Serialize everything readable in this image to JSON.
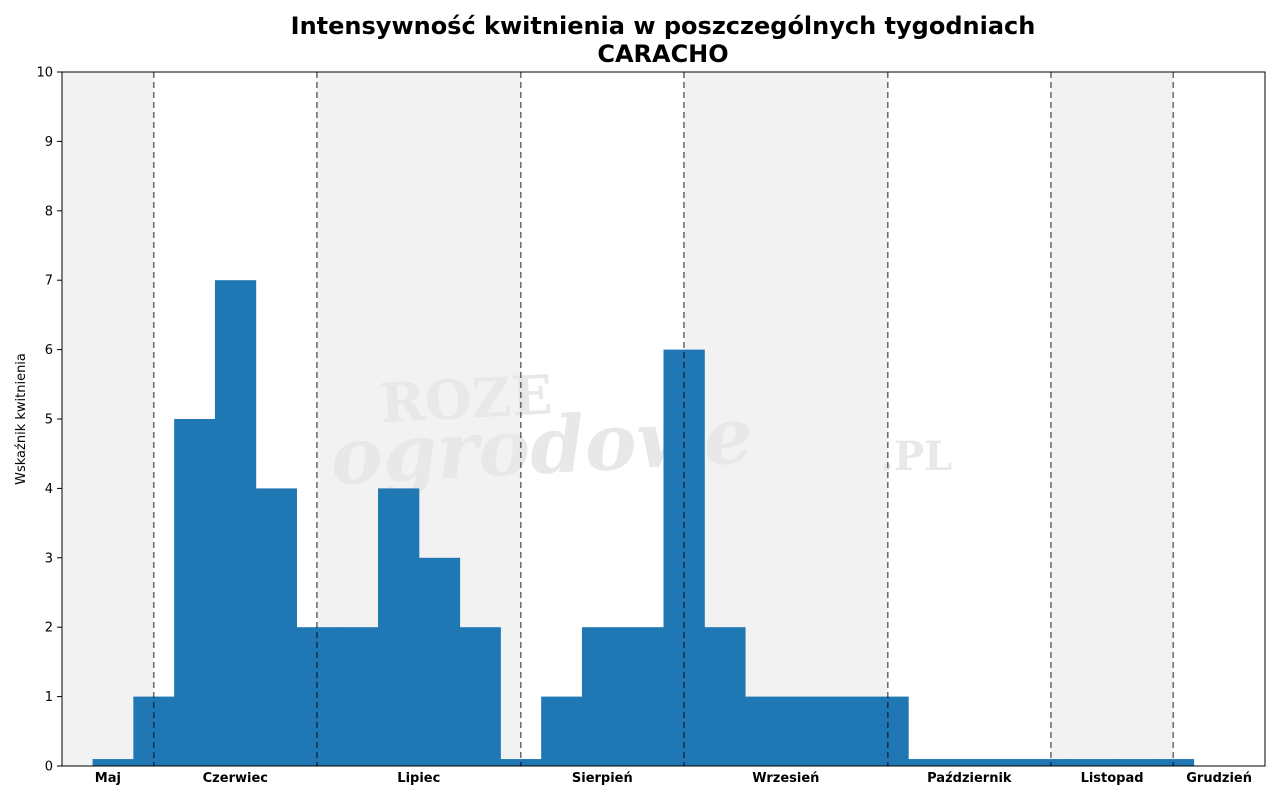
{
  "chart_data": {
    "type": "bar",
    "title": "Intensywność kwitnienia w poszczególnych tygodniach",
    "subtitle": "CARACHO",
    "xlabel": "",
    "ylabel": "Wskaźnik kwitnienia",
    "ylim": [
      0,
      10
    ],
    "yticks": [
      0,
      1,
      2,
      3,
      4,
      5,
      6,
      7,
      8,
      9,
      10
    ],
    "grid": false,
    "bar_color": "#1f77b4",
    "shade_color": "#f2f2f2",
    "weeks": [
      {
        "month": "Maj",
        "value": 0.1
      },
      {
        "month": "Czerwiec",
        "value": 1
      },
      {
        "month": "Czerwiec",
        "value": 5
      },
      {
        "month": "Czerwiec",
        "value": 7
      },
      {
        "month": "Czerwiec",
        "value": 4
      },
      {
        "month": "Lipiec",
        "value": 2
      },
      {
        "month": "Lipiec",
        "value": 2
      },
      {
        "month": "Lipiec",
        "value": 4
      },
      {
        "month": "Lipiec",
        "value": 3
      },
      {
        "month": "Lipiec",
        "value": 2
      },
      {
        "month": "Sierpień",
        "value": 0.1
      },
      {
        "month": "Sierpień",
        "value": 1
      },
      {
        "month": "Sierpień",
        "value": 2
      },
      {
        "month": "Sierpień",
        "value": 2
      },
      {
        "month": "Wrzesień",
        "value": 6
      },
      {
        "month": "Wrzesień",
        "value": 2
      },
      {
        "month": "Wrzesień",
        "value": 1
      },
      {
        "month": "Wrzesień",
        "value": 1
      },
      {
        "month": "Wrzesień",
        "value": 1
      },
      {
        "month": "Październik",
        "value": 1
      },
      {
        "month": "Październik",
        "value": 0.1
      },
      {
        "month": "Październik",
        "value": 0.1
      },
      {
        "month": "Październik",
        "value": 0.1
      },
      {
        "month": "Listopad",
        "value": 0.1
      },
      {
        "month": "Listopad",
        "value": 0.1
      },
      {
        "month": "Listopad",
        "value": 0.1
      },
      {
        "month": "Grudzień",
        "value": 0.1
      }
    ],
    "months": [
      {
        "name": "Maj",
        "start": -0.25,
        "end": 2,
        "shaded": true
      },
      {
        "name": "Czerwiec",
        "start": 2,
        "end": 6,
        "shaded": false
      },
      {
        "name": "Lipiec",
        "start": 6,
        "end": 11,
        "shaded": true
      },
      {
        "name": "Sierpień",
        "start": 11,
        "end": 15,
        "shaded": false
      },
      {
        "name": "Wrzesień",
        "start": 15,
        "end": 20,
        "shaded": true
      },
      {
        "name": "Październik",
        "start": 20,
        "end": 24,
        "shaded": false
      },
      {
        "name": "Listopad",
        "start": 24,
        "end": 27,
        "shaded": true
      },
      {
        "name": "Grudzień",
        "start": 27,
        "end": 29.25,
        "shaded": false
      }
    ],
    "xlim": [
      -0.25,
      29.25
    ],
    "first_bar_x": 1,
    "watermark": [
      "ROZE",
      "ogrodowe",
      ".PL"
    ]
  }
}
